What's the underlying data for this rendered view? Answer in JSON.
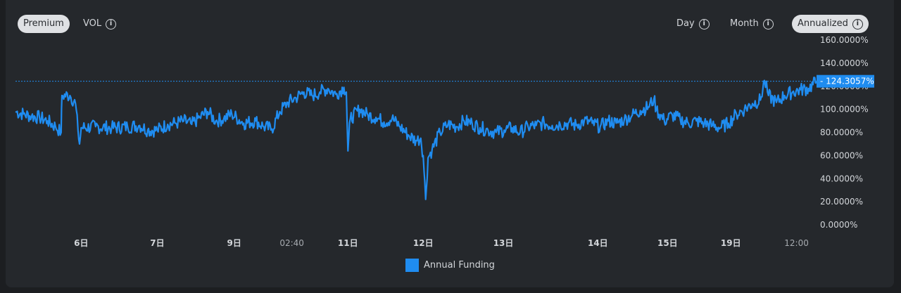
{
  "controls": {
    "left": [
      {
        "label": "Premium",
        "active": true,
        "info": false
      },
      {
        "label": "VOL",
        "active": false,
        "info": true
      }
    ],
    "right": [
      {
        "label": "Day",
        "active": false
      },
      {
        "label": "Month",
        "active": false
      },
      {
        "label": "Annualized",
        "active": true
      }
    ]
  },
  "colors": {
    "series": "#1f8cf0",
    "text": "#d3d6da",
    "background": "#25282c"
  },
  "chart_data": {
    "type": "line",
    "ylim": [
      0,
      160
    ],
    "y_ticks": [
      "0.0000%",
      "20.0000%",
      "40.0000%",
      "60.0000%",
      "80.0000%",
      "100.0000%",
      "120.0000%",
      "140.0000%",
      "160.0000%"
    ],
    "x_ticks": [
      {
        "label": "6日",
        "bold": true,
        "t": 0.082
      },
      {
        "label": "7日",
        "bold": true,
        "t": 0.177
      },
      {
        "label": "9日",
        "bold": true,
        "t": 0.273
      },
      {
        "label": "02:40",
        "bold": false,
        "t": 0.345
      },
      {
        "label": "11日",
        "bold": true,
        "t": 0.415
      },
      {
        "label": "12日",
        "bold": true,
        "t": 0.509
      },
      {
        "label": "13日",
        "bold": true,
        "t": 0.609
      },
      {
        "label": "14日",
        "bold": true,
        "t": 0.727
      },
      {
        "label": "15日",
        "bold": true,
        "t": 0.814
      },
      {
        "label": "19日",
        "bold": true,
        "t": 0.893
      },
      {
        "label": "12:00",
        "bold": false,
        "t": 0.975
      }
    ],
    "current_value_label": "124.3057%",
    "current_value": 124.3,
    "series": [
      {
        "name": "Annual Funding",
        "points": [
          [
            0.0,
            98
          ],
          [
            0.01,
            96
          ],
          [
            0.02,
            94
          ],
          [
            0.03,
            93
          ],
          [
            0.04,
            90
          ],
          [
            0.05,
            85
          ],
          [
            0.057,
            80
          ],
          [
            0.058,
            112
          ],
          [
            0.068,
            112
          ],
          [
            0.075,
            105
          ],
          [
            0.078,
            82
          ],
          [
            0.08,
            70
          ],
          [
            0.082,
            84
          ],
          [
            0.1,
            85
          ],
          [
            0.12,
            84
          ],
          [
            0.14,
            85
          ],
          [
            0.155,
            86
          ],
          [
            0.165,
            82
          ],
          [
            0.177,
            82
          ],
          [
            0.19,
            87
          ],
          [
            0.2,
            88
          ],
          [
            0.21,
            90
          ],
          [
            0.22,
            87
          ],
          [
            0.23,
            93
          ],
          [
            0.24,
            98
          ],
          [
            0.25,
            90
          ],
          [
            0.26,
            92
          ],
          [
            0.27,
            96
          ],
          [
            0.285,
            88
          ],
          [
            0.3,
            90
          ],
          [
            0.31,
            85
          ],
          [
            0.32,
            83
          ],
          [
            0.33,
            98
          ],
          [
            0.34,
            106
          ],
          [
            0.35,
            110
          ],
          [
            0.36,
            115
          ],
          [
            0.37,
            112
          ],
          [
            0.38,
            115
          ],
          [
            0.39,
            118
          ],
          [
            0.4,
            113
          ],
          [
            0.41,
            119
          ],
          [
            0.413,
            115
          ],
          [
            0.415,
            64
          ],
          [
            0.418,
            92
          ],
          [
            0.43,
            100
          ],
          [
            0.44,
            95
          ],
          [
            0.45,
            93
          ],
          [
            0.46,
            89
          ],
          [
            0.47,
            92
          ],
          [
            0.48,
            85
          ],
          [
            0.49,
            78
          ],
          [
            0.5,
            73
          ],
          [
            0.506,
            75
          ],
          [
            0.509,
            60
          ],
          [
            0.512,
            22
          ],
          [
            0.515,
            58
          ],
          [
            0.52,
            65
          ],
          [
            0.53,
            80
          ],
          [
            0.54,
            87
          ],
          [
            0.55,
            85
          ],
          [
            0.56,
            90
          ],
          [
            0.57,
            88
          ],
          [
            0.58,
            84
          ],
          [
            0.59,
            82
          ],
          [
            0.6,
            80
          ],
          [
            0.61,
            82
          ],
          [
            0.62,
            84
          ],
          [
            0.63,
            80
          ],
          [
            0.64,
            85
          ],
          [
            0.65,
            86
          ],
          [
            0.66,
            88
          ],
          [
            0.67,
            86
          ],
          [
            0.68,
            87
          ],
          [
            0.69,
            88
          ],
          [
            0.7,
            86
          ],
          [
            0.71,
            90
          ],
          [
            0.72,
            88
          ],
          [
            0.73,
            85
          ],
          [
            0.74,
            90
          ],
          [
            0.75,
            88
          ],
          [
            0.76,
            91
          ],
          [
            0.77,
            95
          ],
          [
            0.78,
            99
          ],
          [
            0.79,
            102
          ],
          [
            0.797,
            109
          ],
          [
            0.8,
            100
          ],
          [
            0.81,
            90
          ],
          [
            0.82,
            95
          ],
          [
            0.83,
            91
          ],
          [
            0.84,
            88
          ],
          [
            0.85,
            90
          ],
          [
            0.86,
            88
          ],
          [
            0.87,
            86
          ],
          [
            0.88,
            84
          ],
          [
            0.89,
            88
          ],
          [
            0.9,
            96
          ],
          [
            0.91,
            100
          ],
          [
            0.92,
            105
          ],
          [
            0.93,
            108
          ],
          [
            0.935,
            125
          ],
          [
            0.94,
            112
          ],
          [
            0.95,
            106
          ],
          [
            0.96,
            112
          ],
          [
            0.97,
            115
          ],
          [
            0.98,
            117
          ],
          [
            0.99,
            118
          ],
          [
            1.0,
            124.3
          ]
        ]
      }
    ]
  },
  "legend": {
    "label": "Annual Funding"
  }
}
